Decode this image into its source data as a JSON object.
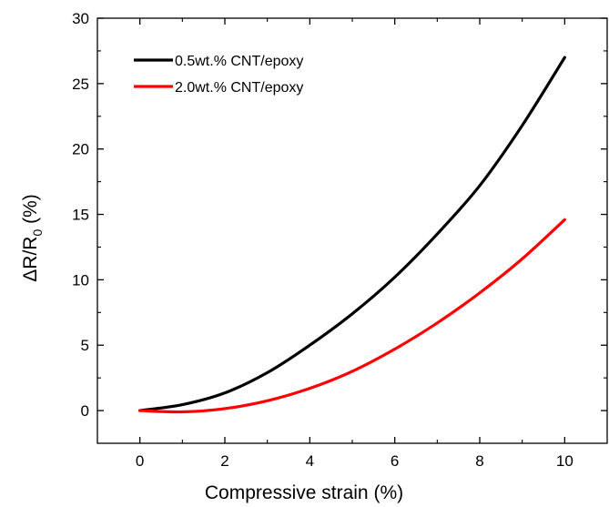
{
  "chart_data": {
    "type": "line",
    "title": "",
    "xlabel": "Compressive strain (%)",
    "ylabel": {
      "prefix": "ΔR/R",
      "subscript": "0",
      "suffix": " (%)"
    },
    "xlim": [
      -1,
      11
    ],
    "ylim": [
      -2.5,
      30
    ],
    "xticks": [
      0,
      2,
      4,
      6,
      8,
      10
    ],
    "yticks": [
      0,
      5,
      10,
      15,
      20,
      25,
      30
    ],
    "grid": false,
    "legend_position": "top-left",
    "series": [
      {
        "name": "0.5wt.% CNT/epoxy",
        "color": "#000000",
        "x": [
          0,
          1,
          2,
          3,
          4,
          5,
          6,
          7,
          8,
          9,
          10
        ],
        "y": [
          0,
          0.45,
          1.35,
          2.9,
          5.0,
          7.4,
          10.2,
          13.5,
          17.2,
          21.8,
          27.0
        ]
      },
      {
        "name": "2.0wt.% CNT/epoxy",
        "color": "#ff0000",
        "x": [
          0,
          1,
          2,
          3,
          4,
          5,
          6,
          7,
          8,
          9,
          10
        ],
        "y": [
          0,
          -0.1,
          0.15,
          0.75,
          1.7,
          3.0,
          4.7,
          6.7,
          9.0,
          11.6,
          14.6
        ]
      }
    ]
  }
}
